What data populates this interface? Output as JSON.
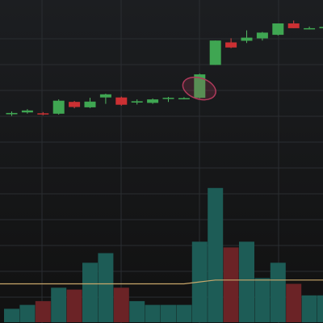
{
  "chart_data": {
    "type": "candlestick",
    "price_range": [
      0,
      100
    ],
    "volume_range": [
      0,
      80
    ],
    "grid": true,
    "colors": {
      "background_top": "#1c1e21",
      "background_bottom": "#111111",
      "grid": "#2a2d31",
      "up_body": "#3fa652",
      "up_wick": "#52b663",
      "down_body": "#cc3033",
      "down_wick": "#d64545",
      "volume_up": "#1d5c56",
      "volume_down": "#6b2326",
      "volume_ma": "#c9a86b",
      "annotation": "#b03a5c"
    },
    "candles": [
      {
        "o": 63.9,
        "h": 64.8,
        "l": 63.4,
        "c": 64.3
      },
      {
        "o": 64.5,
        "h": 65.5,
        "l": 64.1,
        "c": 65.1
      },
      {
        "o": 64.2,
        "h": 64.6,
        "l": 63.6,
        "c": 64.0
      },
      {
        "o": 64.1,
        "h": 68.6,
        "l": 63.8,
        "c": 68.2
      },
      {
        "o": 67.8,
        "h": 68.1,
        "l": 65.8,
        "c": 66.2
      },
      {
        "o": 66.1,
        "h": 69.1,
        "l": 65.9,
        "c": 67.9
      },
      {
        "o": 69.2,
        "h": 70.4,
        "l": 67.2,
        "c": 70.2
      },
      {
        "o": 69.2,
        "h": 69.5,
        "l": 66.6,
        "c": 66.9
      },
      {
        "o": 67.6,
        "h": 68.6,
        "l": 67.0,
        "c": 68.0
      },
      {
        "o": 67.5,
        "h": 68.9,
        "l": 67.2,
        "c": 68.6
      },
      {
        "o": 69.0,
        "h": 69.4,
        "l": 67.8,
        "c": 69.1
      },
      {
        "o": 69.0,
        "h": 69.3,
        "l": 68.6,
        "c": 69.0
      },
      {
        "o": 69.1,
        "h": 76.7,
        "l": 68.9,
        "c": 76.5
      },
      {
        "o": 79.5,
        "h": 87.2,
        "l": 79.5,
        "c": 87.2
      },
      {
        "o": 86.6,
        "h": 87.9,
        "l": 84.8,
        "c": 85.0
      },
      {
        "o": 87.1,
        "h": 90.4,
        "l": 86.4,
        "c": 88.1
      },
      {
        "o": 87.9,
        "h": 89.9,
        "l": 87.2,
        "c": 89.7
      },
      {
        "o": 89.0,
        "h": 92.6,
        "l": 88.8,
        "c": 92.6
      },
      {
        "o": 92.6,
        "h": 93.5,
        "l": 91.1,
        "c": 91.1
      },
      {
        "o": 91.1,
        "h": 91.6,
        "l": 90.7,
        "c": 91.1
      },
      {
        "o": 91.1,
        "h": 93.4,
        "l": 90.9,
        "c": 91.5
      },
      {
        "o": 91.4,
        "h": 92.6,
        "l": 90.7,
        "c": 92.6
      }
    ],
    "volume": [
      7,
      9,
      11,
      18,
      17,
      31,
      36,
      18,
      11,
      9,
      9,
      9,
      42,
      70,
      39,
      42,
      23,
      31,
      20,
      14,
      14,
      9
    ],
    "volume_ma": [
      20,
      20,
      20,
      20,
      20,
      20,
      20,
      20,
      20,
      20,
      20,
      20,
      21,
      22,
      22,
      22,
      22,
      22,
      22,
      22,
      22,
      22
    ],
    "annotation": {
      "type": "ellipse",
      "candle_index": 12
    }
  }
}
